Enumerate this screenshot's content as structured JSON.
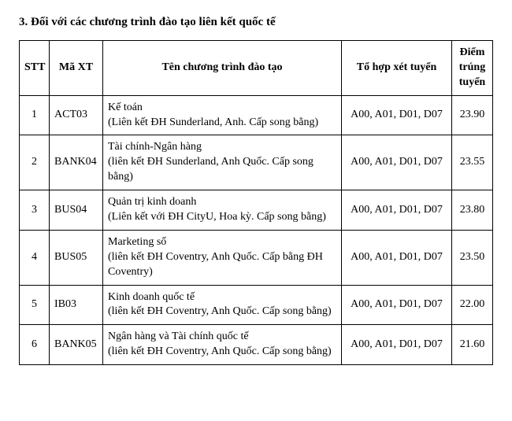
{
  "heading": "3. Đối với các chương trình đào tạo liên kết quốc tế",
  "table": {
    "columns": {
      "stt": "STT",
      "code": "Mã XT",
      "name": "Tên chương trình đào tạo",
      "combo": "Tổ hợp\nxét tuyển",
      "score": "Điểm trúng tuyển"
    },
    "rows": [
      {
        "stt": "1",
        "code": "ACT03",
        "name_line1": "Kế toán",
        "name_line2": "(Liên kết ĐH Sunderland, Anh. Cấp song bằng)",
        "combo": "A00, A01, D01, D07",
        "score": "23.90"
      },
      {
        "stt": "2",
        "code": "BANK04",
        "name_line1": "Tài chính-Ngân hàng",
        "name_line2": "(liên kết ĐH Sunderland, Anh Quốc. Cấp song bằng)",
        "combo": "A00, A01, D01, D07",
        "score": "23.55"
      },
      {
        "stt": "3",
        "code": "BUS04",
        "name_line1": "Quản trị kinh doanh",
        "name_line2": "(Liên kết với ĐH CityU, Hoa kỳ. Cấp song bằng)",
        "combo": "A00, A01, D01, D07",
        "score": "23.80"
      },
      {
        "stt": "4",
        "code": "BUS05",
        "name_line1": "Marketing số",
        "name_line2": "(liên kết ĐH Coventry, Anh Quốc. Cấp bằng ĐH Coventry)",
        "combo": "A00, A01, D01, D07",
        "score": "23.50"
      },
      {
        "stt": "5",
        "code": "IB03",
        "name_line1": "Kinh doanh quốc tế",
        "name_line2": "(liên kết ĐH Coventry, Anh Quốc. Cấp song bằng)",
        "combo": "A00, A01, D01, D07",
        "score": "22.00"
      },
      {
        "stt": "6",
        "code": "BANK05",
        "name_line1": "Ngân hàng và Tài chính quốc tế",
        "name_line2": "(liên kết ĐH Coventry, Anh Quốc. Cấp song bằng)",
        "combo": "A00, A01, D01, D07",
        "score": "21.60"
      }
    ]
  }
}
